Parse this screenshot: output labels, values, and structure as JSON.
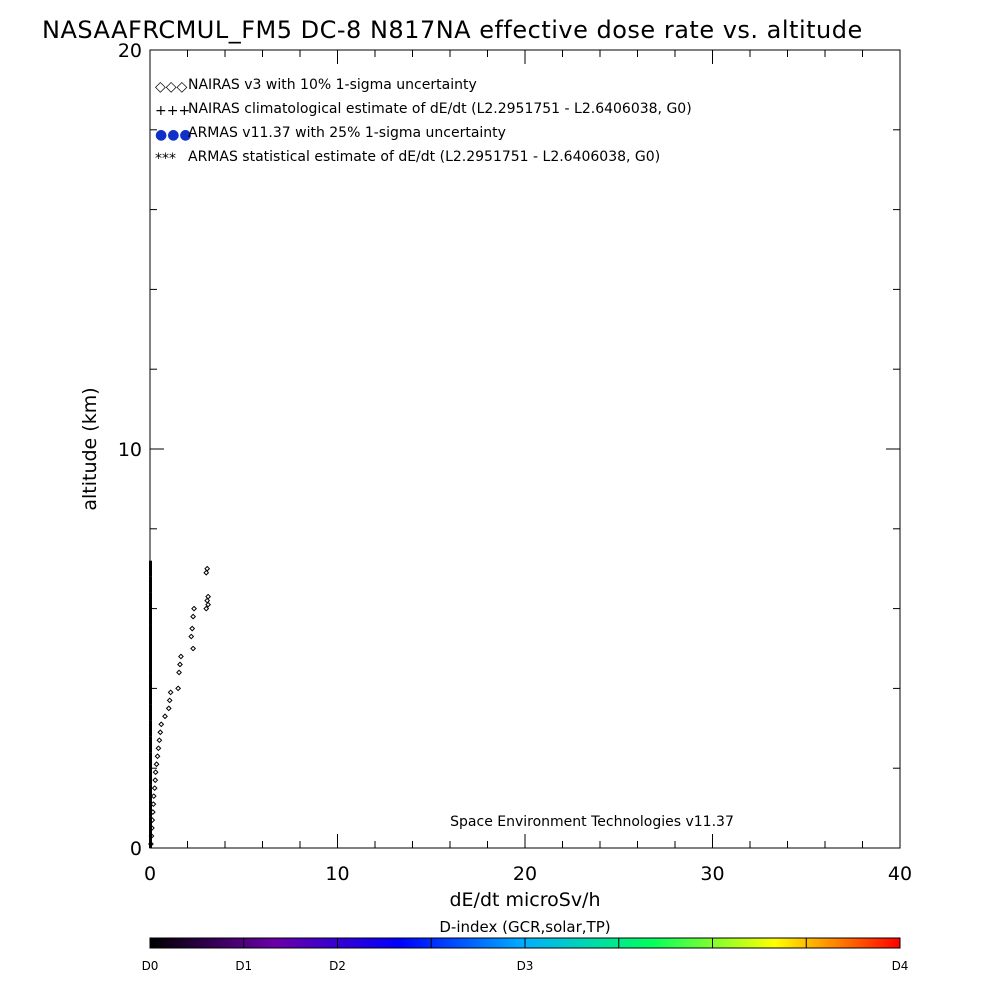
{
  "chart_data": {
    "type": "scatter",
    "title": "NASAAFRCMUL_FM5 DC-8   N817NA effective dose rate vs. altitude",
    "xlabel": "dE/dt microSv/h",
    "ylabel": "altitude (km)",
    "xlim": [
      0,
      40
    ],
    "ylim": [
      0,
      20
    ],
    "x_ticks": [
      0,
      10,
      20,
      30,
      40
    ],
    "x_tick_labels": [
      "0",
      "10",
      "20",
      "30",
      "40"
    ],
    "y_ticks": [
      0,
      10,
      20
    ],
    "y_tick_labels": [
      "0",
      "10",
      "20"
    ],
    "legend": {
      "placement": "top-left",
      "entries": [
        {
          "symbol": "◇◇◇",
          "label": "NAIRAS v3 with 10% 1-sigma uncertainty",
          "color": "#000000"
        },
        {
          "symbol": "+++",
          "label": "NAIRAS climatological estimate of dE/dt (L2.2951751 - L2.6406038, G0)",
          "color": "#000000"
        },
        {
          "symbol": "●●●",
          "label": "ARMAS v11.37 with 25% 1-sigma uncertainty",
          "color": "#1030c8"
        },
        {
          "symbol": "***",
          "label": "ARMAS statistical estimate of dE/dt (L2.2951751 - L2.6406038, G0)",
          "color": "#000000"
        }
      ]
    },
    "annotation": "Space Environment Technologies v11.37",
    "series": [
      {
        "name": "NAIRAS v3 with 10% 1-sigma uncertainty",
        "marker": "diamond",
        "color": "#000000",
        "points": [
          [
            0.05,
            0.1
          ],
          [
            0.08,
            0.3
          ],
          [
            0.1,
            0.5
          ],
          [
            0.12,
            0.7
          ],
          [
            0.15,
            0.9
          ],
          [
            0.18,
            1.1
          ],
          [
            0.2,
            1.3
          ],
          [
            0.25,
            1.5
          ],
          [
            0.28,
            1.7
          ],
          [
            0.3,
            1.9
          ],
          [
            0.35,
            2.1
          ],
          [
            0.4,
            2.3
          ],
          [
            0.45,
            2.5
          ],
          [
            0.5,
            2.7
          ],
          [
            0.55,
            2.9
          ],
          [
            0.6,
            3.1
          ],
          [
            0.8,
            3.3
          ],
          [
            1.0,
            3.5
          ],
          [
            1.05,
            3.7
          ],
          [
            1.1,
            3.9
          ],
          [
            1.5,
            4.0
          ],
          [
            1.55,
            4.4
          ],
          [
            1.6,
            4.6
          ],
          [
            1.65,
            4.8
          ],
          [
            2.3,
            5.0
          ],
          [
            2.2,
            5.3
          ],
          [
            2.25,
            5.5
          ],
          [
            2.3,
            5.8
          ],
          [
            2.35,
            6.0
          ],
          [
            3.0,
            6.0
          ],
          [
            3.1,
            6.1
          ],
          [
            3.05,
            6.2
          ],
          [
            3.1,
            6.3
          ],
          [
            3.0,
            6.9
          ],
          [
            3.05,
            7.0
          ]
        ]
      },
      {
        "name": "ARMAS statistical estimate of dE/dt (L2.2951751 - L2.6406038, G0)",
        "marker": "bar",
        "color": "#000000",
        "points": [
          [
            0.0,
            0.2
          ],
          [
            0.0,
            0.6
          ],
          [
            0.0,
            1.0
          ],
          [
            0.0,
            1.4
          ],
          [
            0.0,
            1.8
          ],
          [
            0.0,
            2.2
          ],
          [
            0.0,
            2.6
          ],
          [
            0.0,
            3.0
          ],
          [
            0.0,
            3.4
          ],
          [
            0.0,
            3.8
          ],
          [
            0.0,
            4.2
          ],
          [
            0.0,
            4.6
          ],
          [
            0.0,
            5.0
          ],
          [
            0.0,
            5.4
          ],
          [
            0.0,
            5.8
          ],
          [
            0.0,
            6.2
          ],
          [
            0.0,
            6.6
          ],
          [
            0.0,
            7.0
          ]
        ]
      }
    ],
    "colorbar": {
      "title": "D-index (GCR,solar,TP)",
      "labels": [
        {
          "text": "D0",
          "pos": 0.0
        },
        {
          "text": "D1",
          "pos": 0.125
        },
        {
          "text": "D2",
          "pos": 0.25
        },
        {
          "text": "D3",
          "pos": 0.5
        },
        {
          "text": "D4",
          "pos": 1.0
        }
      ],
      "stops": [
        "#000000",
        "#6a00a8",
        "#0000ff",
        "#00b0ff",
        "#00ff60",
        "#ffff00",
        "#ff0000"
      ]
    }
  }
}
